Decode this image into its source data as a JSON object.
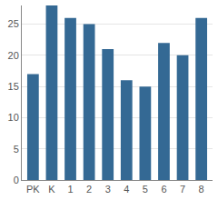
{
  "chart_data": {
    "type": "bar",
    "categories": [
      "PK",
      "K",
      "1",
      "2",
      "3",
      "4",
      "5",
      "6",
      "7",
      "8"
    ],
    "values": [
      17,
      28,
      26,
      25,
      21,
      16,
      15,
      22,
      20,
      26
    ],
    "color": "#346994",
    "ylim": [
      0,
      28
    ],
    "yticks": [
      0,
      5,
      10,
      15,
      20,
      25
    ],
    "grid": true
  }
}
